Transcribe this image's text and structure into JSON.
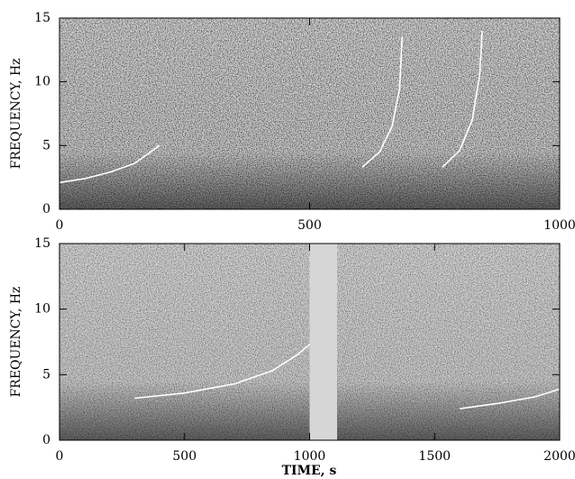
{
  "chart_data": [
    {
      "type": "line",
      "ylabel": "FREQUENCY, Hz",
      "xlim": [
        0,
        1000
      ],
      "xticks": [
        0,
        500,
        1000
      ],
      "ylim": [
        0,
        15
      ],
      "yticks": [
        0,
        5,
        10,
        15
      ],
      "series": [
        {
          "color": "#ffffff",
          "x": [
            0,
            50,
            100,
            150,
            200
          ],
          "values": [
            2.1,
            2.4,
            2.9,
            3.6,
            5.0
          ]
        },
        {
          "color": "#ffffff",
          "x": [
            605,
            640,
            665,
            680,
            685
          ],
          "values": [
            3.3,
            4.5,
            6.5,
            9.5,
            13.5
          ]
        },
        {
          "color": "#ffffff",
          "x": [
            765,
            800,
            825,
            840,
            845
          ],
          "values": [
            3.3,
            4.6,
            7.0,
            10.5,
            14.0
          ]
        }
      ]
    },
    {
      "type": "line",
      "ylabel": "FREQUENCY, Hz",
      "xlabel": "TIME, s",
      "xlim": [
        0,
        2000
      ],
      "xticks": [
        0,
        500,
        1000,
        1500,
        2000
      ],
      "ylim": [
        0,
        15
      ],
      "yticks": [
        0,
        5,
        10,
        15
      ],
      "series": [
        {
          "color": "#ffffff",
          "x": [
            300,
            500,
            700,
            850,
            950,
            1000
          ],
          "values": [
            3.2,
            3.6,
            4.3,
            5.3,
            6.5,
            7.3
          ]
        },
        {
          "color": "#ffffff",
          "x": [
            1600,
            1750,
            1900,
            2000
          ],
          "values": [
            2.4,
            2.8,
            3.3,
            3.9
          ]
        }
      ]
    }
  ]
}
